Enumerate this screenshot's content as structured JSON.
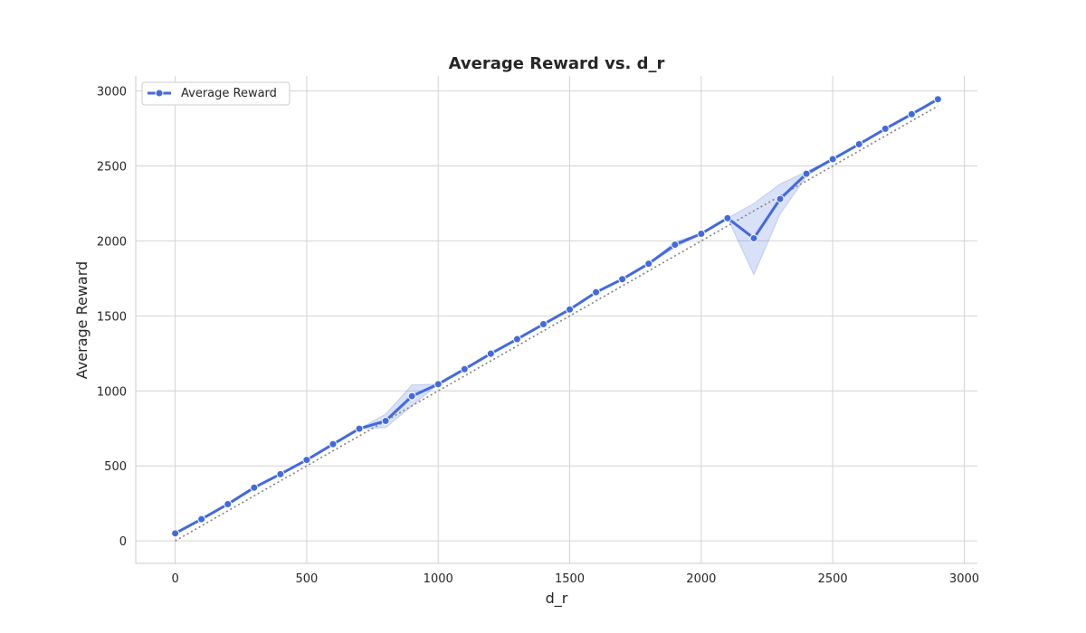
{
  "chart_data": {
    "type": "line",
    "title": "Average Reward vs. d_r",
    "xlabel": "d_r",
    "ylabel": "Average Reward",
    "xlim": [
      -150,
      3050
    ],
    "ylim": [
      -150,
      3100
    ],
    "xticks": [
      0,
      500,
      1000,
      1500,
      2000,
      2500,
      3000
    ],
    "yticks": [
      0,
      500,
      1000,
      1500,
      2000,
      2500,
      3000
    ],
    "grid": true,
    "legend_position": "top-left",
    "series": [
      {
        "name": "Average Reward",
        "color": "#4169e1",
        "x": [
          0,
          100,
          200,
          300,
          400,
          500,
          600,
          700,
          800,
          900,
          1000,
          1100,
          1200,
          1300,
          1400,
          1500,
          1600,
          1700,
          1800,
          1900,
          2000,
          2100,
          2200,
          2300,
          2400,
          2500,
          2600,
          2700,
          2800,
          2900
        ],
        "y": [
          50,
          145,
          245,
          355,
          445,
          540,
          645,
          748,
          800,
          965,
          1045,
          1145,
          1248,
          1345,
          1445,
          1543,
          1658,
          1745,
          1848,
          1975,
          2048,
          2152,
          2018,
          2280,
          2448,
          2545,
          2645,
          2748,
          2845,
          2945
        ],
        "ci_lower": [
          50,
          145,
          245,
          355,
          445,
          540,
          645,
          748,
          755,
          900,
          1045,
          1145,
          1248,
          1345,
          1445,
          1543,
          1658,
          1745,
          1848,
          1955,
          2048,
          2152,
          1775,
          2180,
          2430,
          2545,
          2645,
          2748,
          2845,
          2945
        ],
        "ci_upper": [
          50,
          145,
          245,
          355,
          445,
          540,
          645,
          748,
          845,
          1040,
          1045,
          1145,
          1248,
          1345,
          1445,
          1543,
          1658,
          1745,
          1848,
          1995,
          2048,
          2152,
          2250,
          2380,
          2462,
          2545,
          2645,
          2748,
          2845,
          2945
        ]
      },
      {
        "role": "reference",
        "color": "#808080",
        "x": [
          0,
          2900
        ],
        "y": [
          0,
          2900
        ]
      }
    ]
  }
}
